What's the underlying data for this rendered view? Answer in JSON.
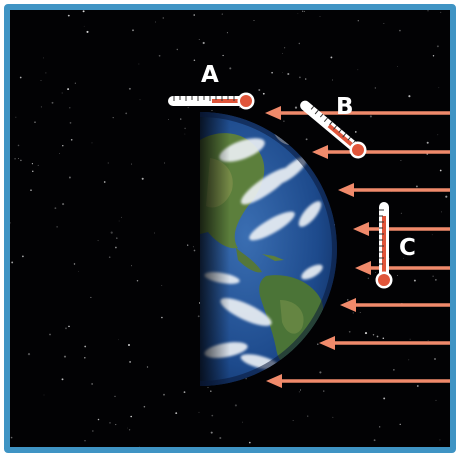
{
  "labels": {
    "a": "A",
    "b": "B",
    "c": "C"
  },
  "colors": {
    "frame": "#3f94c4",
    "space": "#020204",
    "arrow": "#f08a6b",
    "thermometer_red": "#e0553a",
    "ocean": "#1d4a8c",
    "land": "#4f7a3a",
    "cloud": "#eef2f6"
  }
}
